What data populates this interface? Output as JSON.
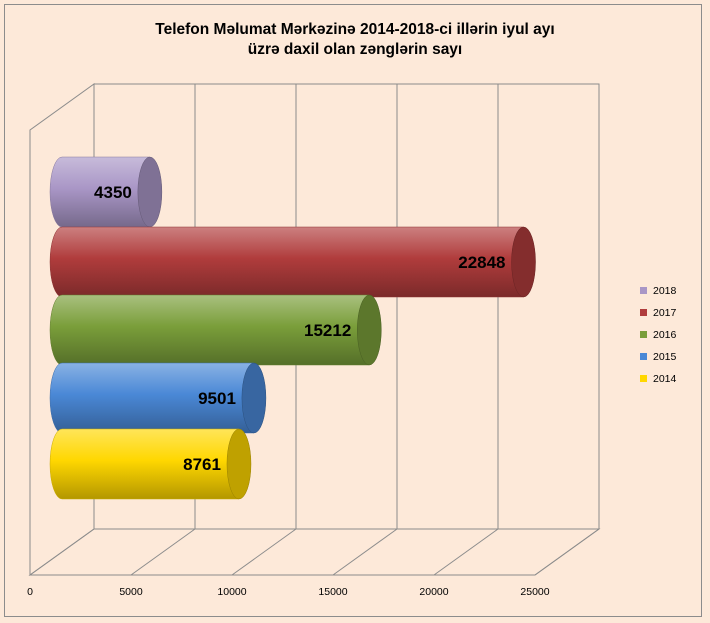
{
  "chart_data": {
    "type": "bar",
    "orientation": "horizontal",
    "style": "3d-cylinder",
    "title_lines": [
      "Telefon Məlumat Mərkəzinə  2014-2018-ci  illərin iyul ayı",
      "üzrə  daxil  olan zənglərin sayı"
    ],
    "categories": [
      "2014",
      "2015",
      "2016",
      "2017",
      "2018"
    ],
    "values": [
      8761,
      9501,
      15212,
      22848,
      4350
    ],
    "colors": [
      "#ffd700",
      "#4a88d6",
      "#7a9e3a",
      "#b03c3c",
      "#a996c6"
    ],
    "xlim": [
      0,
      25000
    ],
    "x_ticks": [
      "0",
      "5000",
      "10000",
      "15000",
      "20000",
      "25000"
    ],
    "grid": "vertical",
    "legend_position": "right",
    "legend_order": [
      "2018",
      "2017",
      "2016",
      "2015",
      "2014"
    ]
  }
}
